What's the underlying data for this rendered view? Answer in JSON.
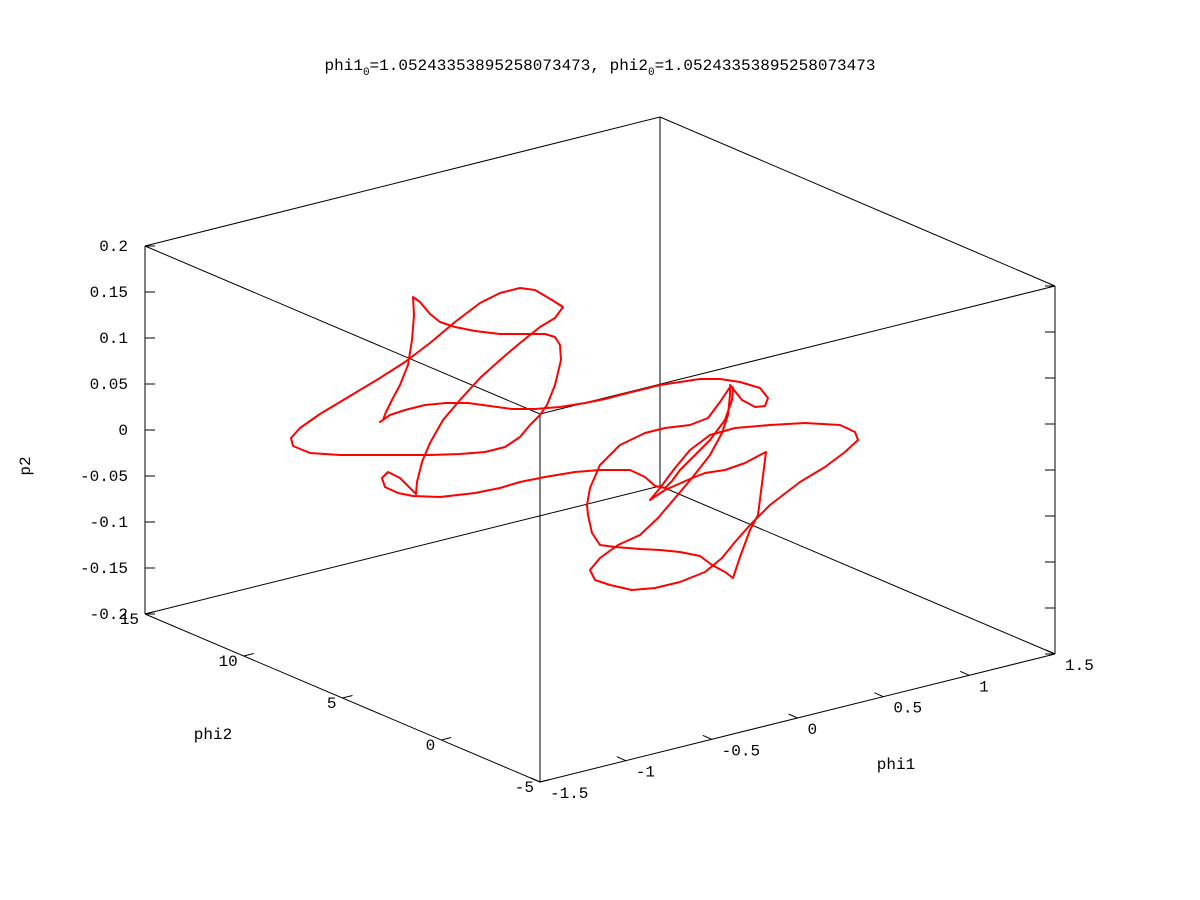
{
  "chart_data": {
    "type": "line3d",
    "title_parts": {
      "var1": "phi1",
      "sub1": "0",
      "val1": "=1.05243353895258073473, ",
      "var2": "phi2",
      "sub2": "0",
      "val2": "=1.05243353895258073473"
    },
    "xlabel": "phi1",
    "ylabel": "phi2",
    "zlabel": "p2",
    "xlim": [
      -1.5,
      1.5
    ],
    "ylim": [
      -5,
      15
    ],
    "zlim": [
      -0.2,
      0.2
    ],
    "x_ticks": [
      "-1.5",
      "-1",
      "-0.5",
      "0",
      "0.5",
      "1",
      "1.5"
    ],
    "y_ticks": [
      "-5",
      "0",
      "5",
      "10",
      "15"
    ],
    "z_ticks": [
      "-0.2",
      "-0.15",
      "-0.1",
      "-0.05",
      "0",
      "0.05",
      "0.1",
      "0.15",
      "0.2"
    ],
    "series": [
      {
        "color": "#ff0000",
        "segments": [
          [
            [
              413,
              297
            ],
            [
              420,
              302
            ],
            [
              430,
              314
            ],
            [
              440,
              322
            ],
            [
              455,
              327
            ],
            [
              475,
              331
            ],
            [
              500,
              334
            ],
            [
              520,
              334
            ],
            [
              545,
              334
            ],
            [
              555,
              337
            ],
            [
              560,
              345
            ],
            [
              561,
              360
            ],
            [
              555,
              385
            ],
            [
              547,
              405
            ],
            [
              540,
              415
            ],
            [
              530,
              425
            ],
            [
              520,
              437
            ],
            [
              505,
              447
            ],
            [
              485,
              452
            ],
            [
              460,
              454
            ],
            [
              430,
              455
            ],
            [
              400,
              455
            ],
            [
              370,
              455
            ],
            [
              340,
              455
            ],
            [
              310,
              453
            ],
            [
              293,
              446
            ],
            [
              291,
              438
            ],
            [
              300,
              428
            ],
            [
              320,
              414
            ],
            [
              350,
              396
            ],
            [
              380,
              378
            ],
            [
              405,
              362
            ],
            [
              430,
              343
            ],
            [
              455,
              322
            ],
            [
              480,
              303
            ],
            [
              500,
              293
            ],
            [
              520,
              288
            ],
            [
              535,
              290
            ],
            [
              552,
              300
            ],
            [
              563,
              307
            ],
            [
              555,
              318
            ],
            [
              540,
              327
            ],
            [
              520,
              343
            ],
            [
              500,
              360
            ],
            [
              480,
              378
            ],
            [
              460,
              400
            ],
            [
              443,
              420
            ],
            [
              430,
              443
            ],
            [
              422,
              462
            ],
            [
              417,
              482
            ],
            [
              416,
              494
            ],
            [
              410,
              488
            ],
            [
              400,
              478
            ],
            [
              388,
              472
            ],
            [
              382,
              478
            ],
            [
              385,
              487
            ],
            [
              398,
              493
            ],
            [
              413,
              496
            ],
            [
              440,
              497
            ],
            [
              475,
              493
            ],
            [
              500,
              488
            ],
            [
              520,
              482
            ],
            [
              545,
              477
            ],
            [
              575,
              472
            ],
            [
              600,
              470
            ],
            [
              630,
              470
            ],
            [
              645,
              477
            ],
            [
              655,
              486
            ],
            [
              665,
              488
            ],
            [
              672,
              481
            ],
            [
              680,
              470
            ],
            [
              695,
              455
            ],
            [
              710,
              440
            ],
            [
              725,
              420
            ],
            [
              732,
              400
            ],
            [
              733,
              388
            ],
            [
              730,
              385
            ],
            [
              742,
              400
            ],
            [
              755,
              407
            ],
            [
              765,
              406
            ],
            [
              768,
              398
            ],
            [
              760,
              388
            ],
            [
              740,
              382
            ],
            [
              720,
              379
            ],
            [
              700,
              379
            ],
            [
              680,
              382
            ],
            [
              660,
              385
            ],
            [
              640,
              390
            ],
            [
              620,
              395
            ],
            [
              605,
              399
            ],
            [
              585,
              403
            ],
            [
              560,
              407
            ],
            [
              535,
              409
            ],
            [
              512,
              409
            ],
            [
              490,
              406
            ],
            [
              468,
              403
            ],
            [
              446,
              403
            ],
            [
              425,
              405
            ],
            [
              405,
              410
            ],
            [
              390,
              415
            ],
            [
              380,
              422
            ],
            [
              383,
              420
            ],
            [
              386,
              412
            ],
            [
              393,
              398
            ],
            [
              400,
              385
            ],
            [
              408,
              365
            ],
            [
              412,
              340
            ],
            [
              414,
              315
            ],
            [
              413,
              297
            ]
          ],
          [
            [
              588,
              515
            ],
            [
              592,
              533
            ],
            [
              600,
              545
            ],
            [
              615,
              547
            ],
            [
              640,
              549
            ],
            [
              660,
              550
            ],
            [
              680,
              552
            ],
            [
              700,
              556
            ],
            [
              712,
              565
            ],
            [
              725,
              572
            ],
            [
              733,
              578
            ],
            [
              735,
              572
            ],
            [
              740,
              557
            ],
            [
              750,
              530
            ],
            [
              758,
              515
            ],
            [
              766,
              452
            ],
            [
              760,
              455
            ],
            [
              745,
              463
            ],
            [
              725,
              470
            ],
            [
              705,
              473
            ],
            [
              690,
              479
            ],
            [
              665,
              490
            ],
            [
              650,
              500
            ],
            [
              660,
              488
            ],
            [
              675,
              468
            ],
            [
              690,
              450
            ],
            [
              710,
              435
            ],
            [
              735,
              428
            ],
            [
              770,
              425
            ],
            [
              805,
              423
            ],
            [
              840,
              425
            ],
            [
              855,
              432
            ],
            [
              858,
              440
            ],
            [
              845,
              452
            ],
            [
              825,
              467
            ],
            [
              800,
              482
            ],
            [
              770,
              505
            ],
            [
              750,
              525
            ],
            [
              735,
              542
            ],
            [
              722,
              558
            ],
            [
              705,
              572
            ],
            [
              680,
              582
            ],
            [
              655,
              588
            ],
            [
              632,
              590
            ],
            [
              610,
              585
            ],
            [
              595,
              580
            ],
            [
              590,
              570
            ],
            [
              600,
              558
            ],
            [
              618,
              545
            ],
            [
              640,
              535
            ],
            [
              658,
              518
            ],
            [
              675,
              498
            ],
            [
              692,
              478
            ],
            [
              710,
              455
            ],
            [
              722,
              433
            ],
            [
              728,
              415
            ],
            [
              730,
              395
            ],
            [
              730,
              387
            ],
            [
              720,
              402
            ],
            [
              708,
              418
            ],
            [
              690,
              425
            ],
            [
              665,
              428
            ],
            [
              645,
              433
            ],
            [
              620,
              445
            ],
            [
              600,
              465
            ],
            [
              590,
              488
            ],
            [
              587,
              505
            ],
            [
              588,
              515
            ]
          ]
        ]
      }
    ]
  }
}
